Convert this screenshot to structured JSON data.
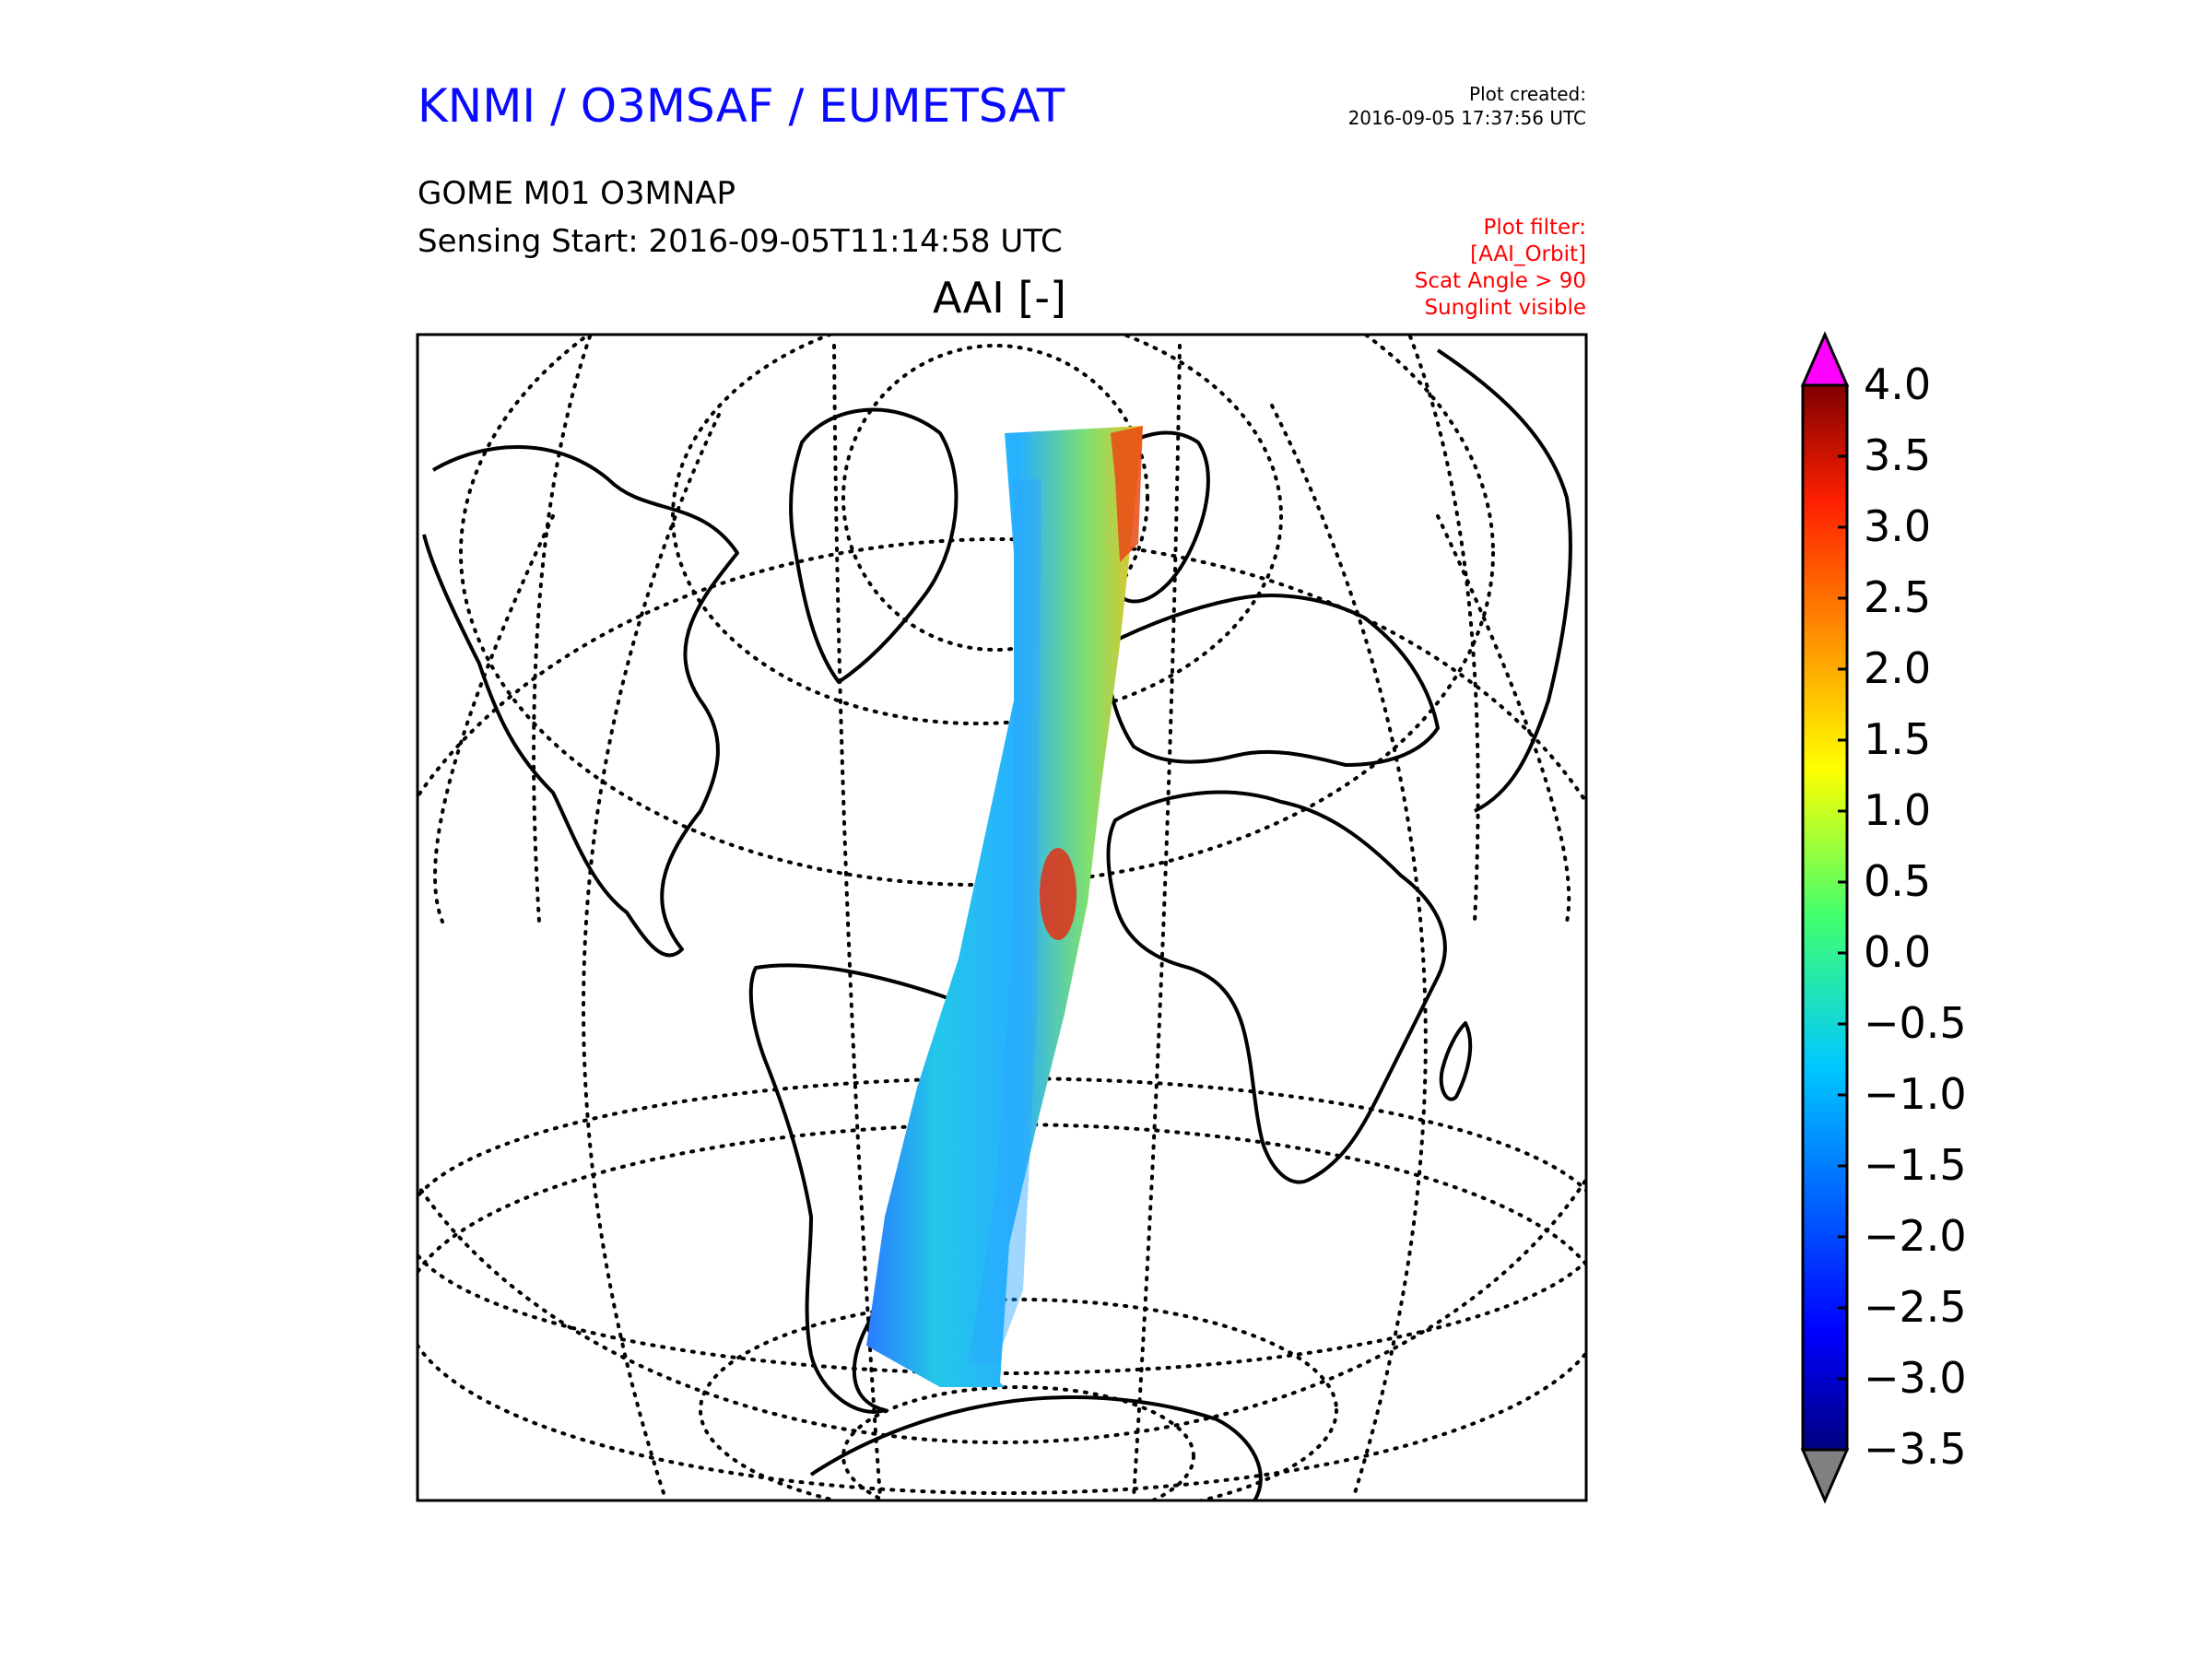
{
  "header": {
    "org_title": "KNMI / O3MSAF / EUMETSAT",
    "plot_created_label": "Plot created:",
    "plot_created_time": "2016-09-05 17:37:56 UTC",
    "product": "GOME M01 O3MNAP",
    "sensing_start": "Sensing Start: 2016-09-05T11:14:58 UTC"
  },
  "filter": {
    "lines": [
      "Plot filter:",
      "[AAI_Orbit]",
      "Scat Angle > 90",
      "Sunglint visible"
    ]
  },
  "map": {
    "title": "AAI [-]",
    "projection": "orthographic",
    "graticule": "dotted",
    "coastlines": true
  },
  "colorbar": {
    "min": -3.5,
    "max": 4.0,
    "extend": "both",
    "colormap": "jet",
    "over_color": "#ff00ff",
    "under_color": "#808080",
    "tick_labels": [
      "4.0",
      "3.5",
      "3.0",
      "2.5",
      "2.0",
      "1.5",
      "1.0",
      "0.5",
      "0.0",
      "−0.5",
      "−1.0",
      "−1.5",
      "−2.0",
      "−2.5",
      "−3.0",
      "−3.5"
    ]
  },
  "colors": {
    "title_blue": "#0a0aff",
    "filter_red": "#ff0000",
    "frame": "#000000"
  }
}
